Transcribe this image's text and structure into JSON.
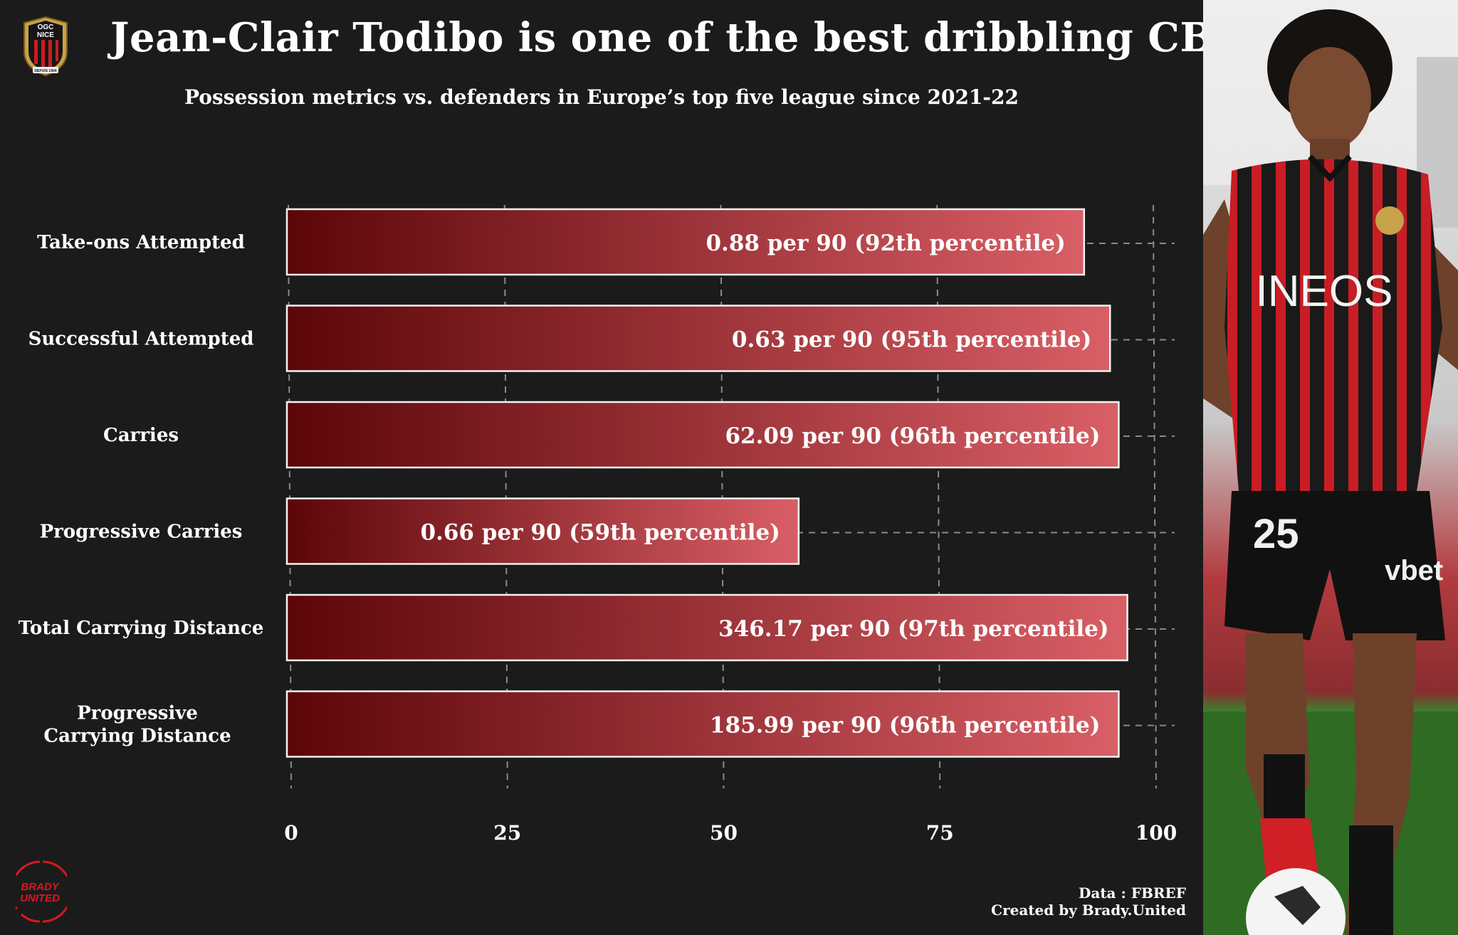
{
  "title": "Jean-Clair Todibo is one of the best dribbling CB",
  "subtitle": "Possession metrics vs. defenders in Europe’s top five league since 2021-22",
  "club_badge": {
    "icon": "ogc-nice-badge-icon",
    "text_top": "OGC",
    "text_bottom": "NICE",
    "ribbon": "DEPUIS 1904"
  },
  "brand_logo": {
    "icon": "brady-united-logo-icon",
    "line1": "BRADY",
    "line2": "UNITED"
  },
  "credits": {
    "source": "Data : FBREF",
    "author": "Created by Brady.United"
  },
  "player_photo": {
    "icon": "player-photo-image",
    "shirt_sponsor": "INEOS",
    "shorts_sponsor": "vbet",
    "shirt_number": "25"
  },
  "colors": {
    "background": "#1b1b1b",
    "bar_dark": "#5c0609",
    "bar_light": "#d95f66",
    "bar_border": "#f2f2f2",
    "grid": "#8a8a8a",
    "text": "#ffffff",
    "brand_red": "#d71920"
  },
  "chart_data": {
    "type": "bar",
    "orientation": "horizontal",
    "categories": [
      "Take-ons Attempted",
      "Successful Attempted",
      "Carries",
      "Progressive Carries",
      "Total Carrying Distance",
      "Progressive Carrying Distance"
    ],
    "category_lines": [
      [
        "Take-ons Attempted"
      ],
      [
        "Successful Attempted"
      ],
      [
        "Carries"
      ],
      [
        "Progressive Carries"
      ],
      [
        "Total Carrying Distance"
      ],
      [
        "Progressive",
        "Carrying Distance"
      ]
    ],
    "values": [
      92,
      95,
      96,
      59,
      97,
      96
    ],
    "data_labels": [
      "0.88 per 90 (92th percentile)",
      "0.63 per 90 (95th percentile)",
      "62.09 per 90 (96th percentile)",
      "0.66 per 90 (59th percentile)",
      "346.17 per 90 (97th percentile)",
      "185.99 per 90 (96th percentile)"
    ],
    "xlim": [
      0,
      100
    ],
    "xticks": [
      0,
      25,
      50,
      75,
      100
    ],
    "xtick_labels": [
      "0",
      "25",
      "50",
      "75",
      "100"
    ],
    "xlabel": "",
    "ylabel": "",
    "grid": "dashed vertical and horizontal"
  }
}
